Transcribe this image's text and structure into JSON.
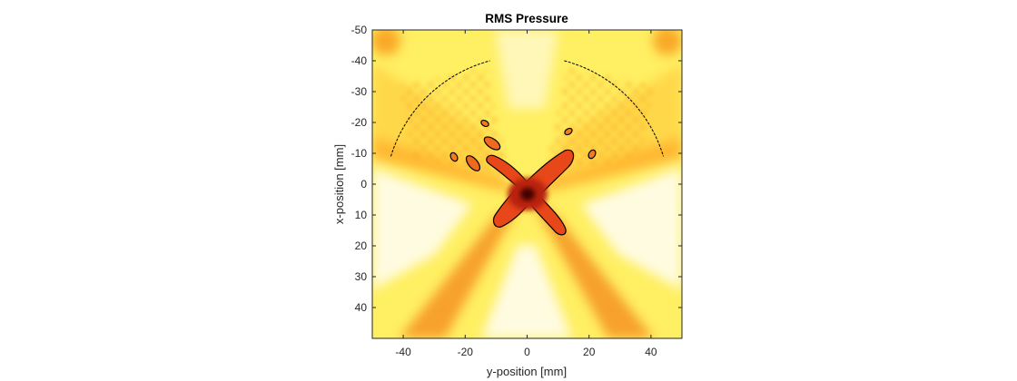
{
  "chart_data": {
    "type": "heatmap",
    "title": "RMS Pressure",
    "xlabel": "y-position [mm]",
    "ylabel": "x-position [mm]",
    "xlim": [
      -50,
      50
    ],
    "ylim": [
      -50,
      50
    ],
    "y_axis_direction": "reversed",
    "xticks": [
      -40,
      -20,
      0,
      20,
      40
    ],
    "yticks": [
      -50,
      -40,
      -30,
      -20,
      -10,
      0,
      10,
      20,
      30,
      40
    ],
    "colormap": "hot (white = low, dark red = high)",
    "colors": {
      "low": "#fffbe8",
      "mid_low": "#ffef60",
      "mid": "#ffb820",
      "mid_high": "#f05a18",
      "high": "#c81e0a",
      "peak": "#5a0000"
    },
    "focus": {
      "y": 0,
      "x": 4,
      "shape": "x-shaped"
    },
    "transducer_arcs": [
      {
        "side": "left",
        "from": [
          -44,
          -9
        ],
        "to": [
          -12,
          -40
        ]
      },
      {
        "side": "right",
        "from": [
          12,
          -40
        ],
        "to": [
          44,
          -9
        ]
      }
    ],
    "grid": false,
    "legend": "none"
  }
}
